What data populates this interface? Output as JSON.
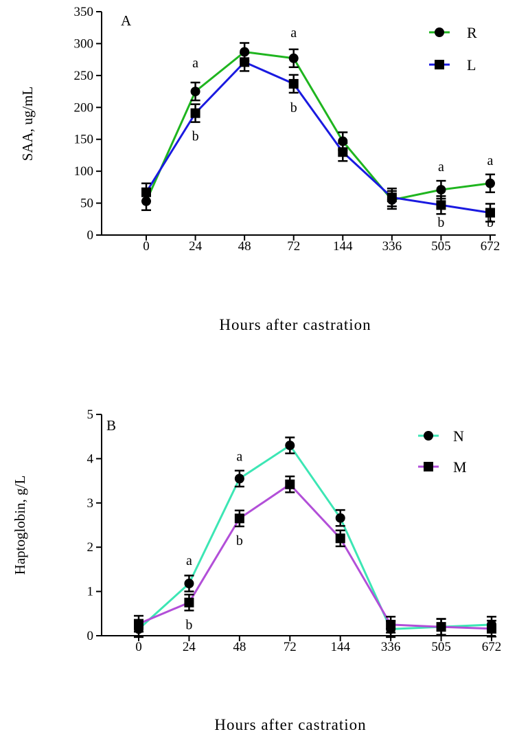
{
  "chart_data": [
    {
      "type": "line",
      "panel_label": "A",
      "xlabel": "Hours after castration",
      "ylabel": "SAA, ug/mL",
      "categories": [
        "0",
        "24",
        "48",
        "72",
        "144",
        "336",
        "505",
        "672"
      ],
      "ylim": [
        0,
        350
      ],
      "yticks": [
        "0",
        "50",
        "100",
        "150",
        "200",
        "250",
        "300",
        "350"
      ],
      "grid": false,
      "legend_position": "top-right",
      "series": [
        {
          "name": "R",
          "marker": "circle",
          "color": "#1fb51f",
          "values": [
            53,
            225,
            287,
            277,
            147,
            55,
            71,
            81
          ],
          "errors": [
            14,
            14,
            14,
            14,
            14,
            14,
            14,
            14
          ]
        },
        {
          "name": "L",
          "marker": "square",
          "color": "#1a1ae0",
          "values": [
            67,
            191,
            271,
            237,
            130,
            59,
            47,
            35
          ],
          "errors": [
            14,
            14,
            14,
            14,
            14,
            14,
            14,
            14
          ]
        }
      ],
      "annotations": [
        {
          "text": "a",
          "category": "24",
          "y": 263
        },
        {
          "text": "b",
          "category": "24",
          "y": 148
        },
        {
          "text": "a",
          "category": "72",
          "y": 310
        },
        {
          "text": "b",
          "category": "72",
          "y": 193
        },
        {
          "text": "a",
          "category": "505",
          "y": 100
        },
        {
          "text": "b",
          "category": "505",
          "y": 13
        },
        {
          "text": "a",
          "category": "672",
          "y": 110
        },
        {
          "text": "b",
          "category": "672",
          "y": 13
        }
      ]
    },
    {
      "type": "line",
      "panel_label": "B",
      "xlabel": "Hours after castration",
      "ylabel": "Haptoglobin, g/L",
      "categories": [
        "0",
        "24",
        "48",
        "72",
        "144",
        "336",
        "505",
        "672"
      ],
      "ylim": [
        0,
        5
      ],
      "yticks": [
        "0",
        "1",
        "2",
        "3",
        "4",
        "5"
      ],
      "grid": false,
      "legend_position": "top-right",
      "series": [
        {
          "name": "N",
          "marker": "circle",
          "color": "#3ce6b4",
          "values": [
            0.15,
            1.18,
            3.55,
            4.3,
            2.66,
            0.15,
            0.2,
            0.25
          ],
          "errors": [
            0.18,
            0.18,
            0.18,
            0.18,
            0.18,
            0.18,
            0.18,
            0.18
          ]
        },
        {
          "name": "M",
          "marker": "square",
          "color": "#b24fd8",
          "values": [
            0.27,
            0.75,
            2.65,
            3.42,
            2.2,
            0.25,
            0.2,
            0.16
          ],
          "errors": [
            0.18,
            0.18,
            0.18,
            0.18,
            0.18,
            0.18,
            0.18,
            0.18
          ]
        }
      ],
      "annotations": [
        {
          "text": "a",
          "category": "24",
          "y": 1.6
        },
        {
          "text": "b",
          "category": "24",
          "y": 0.15
        },
        {
          "text": "a",
          "category": "48",
          "y": 3.95
        },
        {
          "text": "b",
          "category": "48",
          "y": 2.05
        }
      ]
    }
  ]
}
